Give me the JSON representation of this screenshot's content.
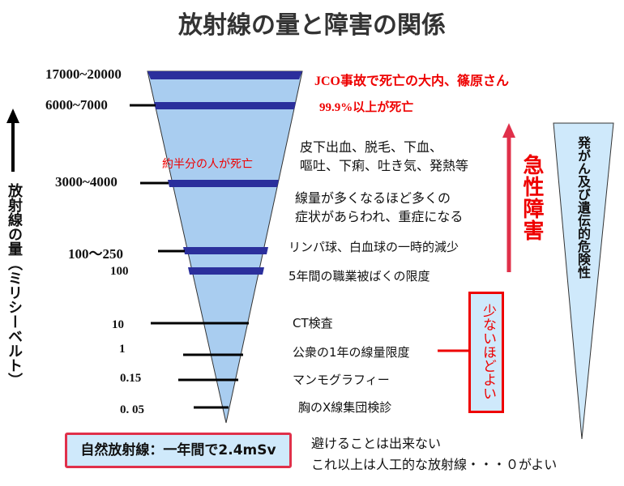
{
  "title": "放射線の量と障害の関係",
  "y_axis_label": "放射線の量（ミリシーベルト）",
  "levels": [
    {
      "value": "17000~20000",
      "description": "JCO事故で死亡の大内、篠原さん"
    },
    {
      "value": "6000~7000",
      "description": "99.9%以上が死亡"
    },
    {
      "value": "3000~4000",
      "description": "線量が多くなるほど多くの\n症状があらわれ、重症になる"
    },
    {
      "value": "100～250",
      "description": "リンパ球、白血球の一時的減少"
    },
    {
      "value": "100",
      "description": "5年間の職業被ばくの限度"
    },
    {
      "value": "10",
      "description": "CT検査"
    },
    {
      "value": "1",
      "description": "公衆の1年の線量限度"
    },
    {
      "value": "0.15",
      "description": "マンモグラフィー"
    },
    {
      "value": "0. 05",
      "description": "胸のX線集団検診"
    }
  ],
  "half_death": "約半分の人が死亡",
  "symptoms": "皮下出血、脱毛、下血、\n嘔吐、下痢、吐き気、発熱等",
  "acute": "急性障害",
  "less_is_better": "少ないほどよい",
  "cancer_risk": "発がん及び遺伝的危険性",
  "natural_radiation": "自然放射線：一年間で2.4mSv",
  "unavoidable": "避けることは出来ない",
  "beyond": "これ以上は人工的な放射線・・・０がよい",
  "colors": {
    "funnel": "#a9cdf0",
    "band": "#2b2f9c",
    "red": "#e00000",
    "box": "#cfe9fb"
  }
}
